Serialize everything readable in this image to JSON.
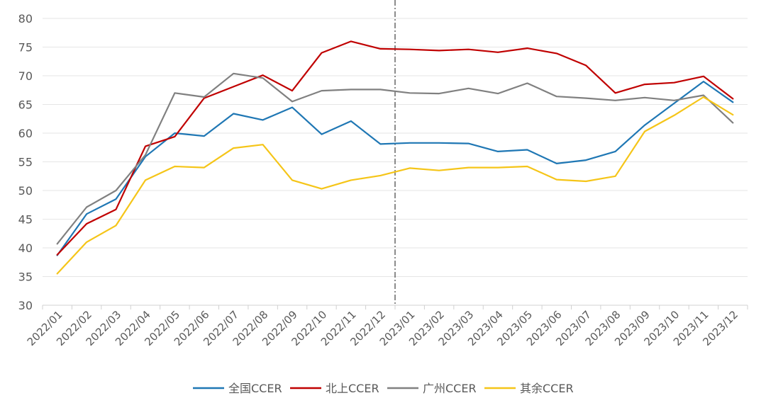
{
  "chart_data": {
    "type": "line",
    "title": "",
    "xlabel": "",
    "ylabel": "",
    "ylim": [
      30,
      80
    ],
    "yticks": [
      30,
      35,
      40,
      45,
      50,
      55,
      60,
      65,
      70,
      75,
      80
    ],
    "grid": "horizontal",
    "legend_position": "bottom",
    "categories": [
      "2022/01",
      "2022/02",
      "2022/03",
      "2022/04",
      "2022/05",
      "2022/06",
      "2022/07",
      "2022/08",
      "2022/09",
      "2022/10",
      "2022/11",
      "2022/12",
      "2023/01",
      "2023/02",
      "2023/03",
      "2023/04",
      "2023/05",
      "2023/06",
      "2023/07",
      "2023/08",
      "2023/09",
      "2023/10",
      "2023/11",
      "2023/12"
    ],
    "divider_after": "2022/12",
    "series": [
      {
        "name": "全国CCER",
        "color": "#1f77b4",
        "values": [
          38.7,
          45.9,
          48.5,
          55.9,
          60.0,
          59.5,
          63.4,
          62.3,
          64.5,
          59.8,
          62.1,
          58.1,
          58.3,
          58.3,
          58.2,
          56.8,
          57.1,
          54.7,
          55.3,
          56.8,
          61.4,
          65.2,
          69.0,
          65.4
        ]
      },
      {
        "name": "北上CCER",
        "color": "#c00000",
        "values": [
          38.8,
          44.2,
          46.7,
          57.7,
          59.4,
          66.1,
          68.1,
          70.1,
          67.4,
          74.0,
          76.0,
          74.7,
          74.6,
          74.4,
          74.6,
          74.1,
          74.8,
          73.9,
          71.8,
          67.0,
          68.5,
          68.8,
          69.9,
          66.0
        ]
      },
      {
        "name": "广州CCER",
        "color": "#808080",
        "values": [
          40.7,
          47.1,
          50.0,
          56.2,
          67.0,
          66.3,
          70.4,
          69.6,
          65.5,
          67.4,
          67.6,
          67.6,
          67.0,
          66.9,
          67.8,
          66.9,
          68.7,
          66.4,
          66.1,
          65.7,
          66.2,
          65.7,
          66.6,
          61.8
        ]
      },
      {
        "name": "其余CCER",
        "color": "#f5c518",
        "values": [
          35.5,
          41.0,
          43.9,
          51.8,
          54.2,
          54.0,
          57.4,
          58.0,
          51.8,
          50.3,
          51.8,
          52.6,
          53.9,
          53.5,
          54.0,
          54.0,
          54.2,
          51.9,
          51.6,
          52.5,
          60.3,
          63.1,
          66.3,
          63.2
        ]
      }
    ]
  }
}
